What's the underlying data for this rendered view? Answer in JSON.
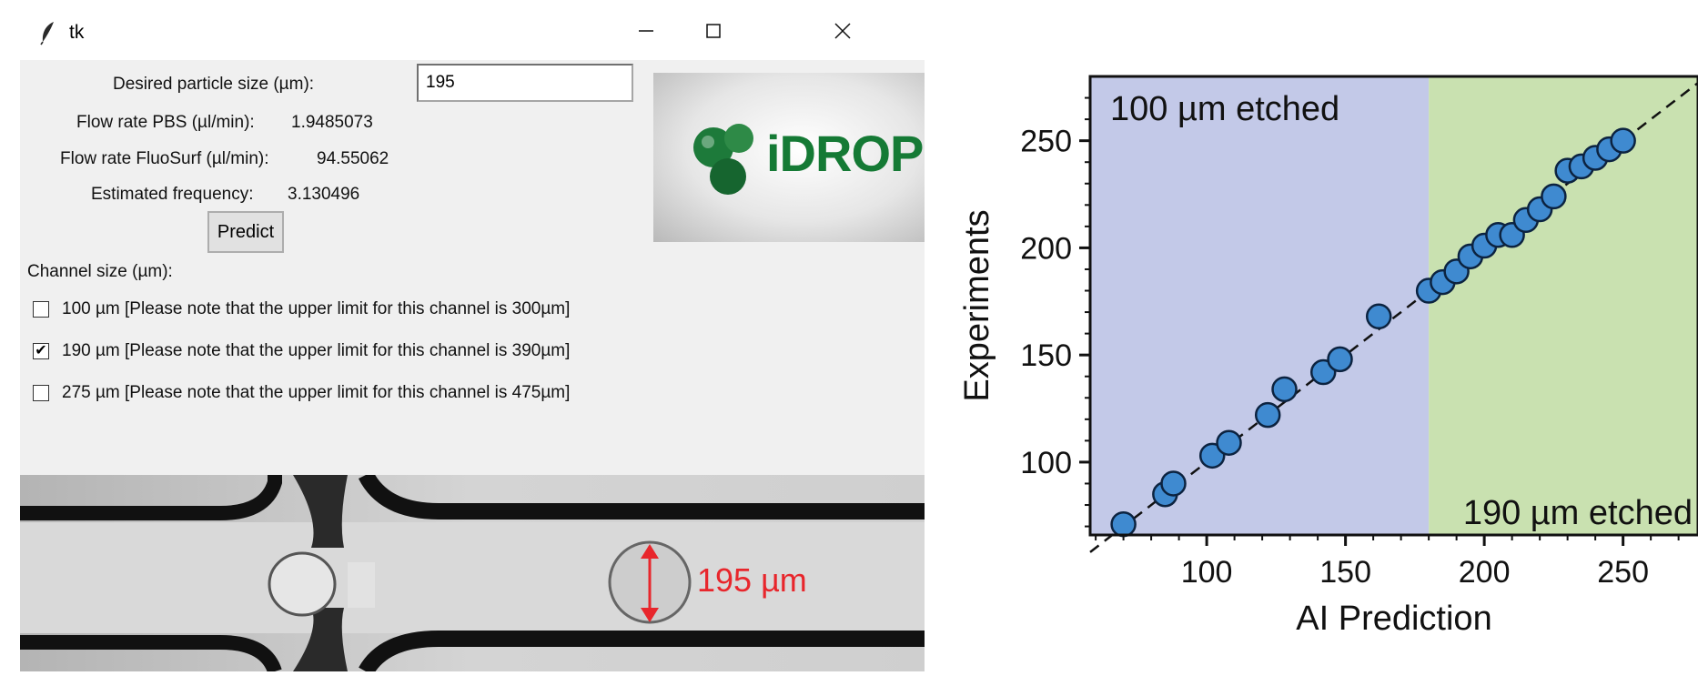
{
  "window": {
    "title": "tk",
    "icon": "feather-icon",
    "controls": [
      "minimize-icon",
      "maximize-icon",
      "close-icon"
    ]
  },
  "form": {
    "particle_label": "Desired particle size (µm):",
    "particle_value": "195",
    "pbs_label": "Flow rate PBS (µl/min):",
    "pbs_value": "1.9485073",
    "fluosurf_label": "Flow rate FluoSurf (µl/min):",
    "fluosurf_value": "94.55062",
    "freq_label": "Estimated frequency:",
    "freq_value": "3.130496",
    "predict_label": "Predict",
    "channel_label": "Channel size (µm):"
  },
  "channels": [
    {
      "label": "100 µm [Please note that the upper limit for this channel is 300µm]",
      "checked": false
    },
    {
      "label": "190 µm [Please note that the upper limit for this channel is 390µm]",
      "checked": true
    },
    {
      "label": "275 µm [Please note that the upper limit for this channel is 475µm]",
      "checked": false
    }
  ],
  "logo": {
    "text": "iDROP",
    "color": "#157a35"
  },
  "micrograph": {
    "annotation": "195 µm",
    "annotation_color": "#e8262c"
  },
  "chart_data": {
    "type": "scatter",
    "xlabel": "AI Prediction",
    "ylabel": "Experiments",
    "xlim": [
      58,
      277
    ],
    "ylim": [
      66,
      280
    ],
    "xticks": [
      100,
      150,
      200,
      250
    ],
    "yticks": [
      100,
      150,
      200,
      250
    ],
    "regions": [
      {
        "label": "100 µm etched",
        "x_range": [
          58,
          180
        ],
        "color": "#c3c9e8"
      },
      {
        "label": "190 µm etched",
        "x_range": [
          180,
          277
        ],
        "color": "#c9e1b0"
      }
    ],
    "reference_line": "y = x",
    "marker_color": "#3f8ad0",
    "points": [
      [
        70,
        71
      ],
      [
        85,
        85
      ],
      [
        88,
        90
      ],
      [
        102,
        103
      ],
      [
        108,
        109
      ],
      [
        122,
        122
      ],
      [
        128,
        134
      ],
      [
        142,
        142
      ],
      [
        148,
        148
      ],
      [
        162,
        168
      ],
      [
        180,
        180
      ],
      [
        185,
        184
      ],
      [
        190,
        189
      ],
      [
        195,
        196
      ],
      [
        200,
        201
      ],
      [
        205,
        206
      ],
      [
        210,
        206
      ],
      [
        215,
        213
      ],
      [
        220,
        218
      ],
      [
        225,
        224
      ],
      [
        230,
        236
      ],
      [
        235,
        238
      ],
      [
        240,
        242
      ],
      [
        245,
        246
      ],
      [
        250,
        250
      ]
    ]
  }
}
